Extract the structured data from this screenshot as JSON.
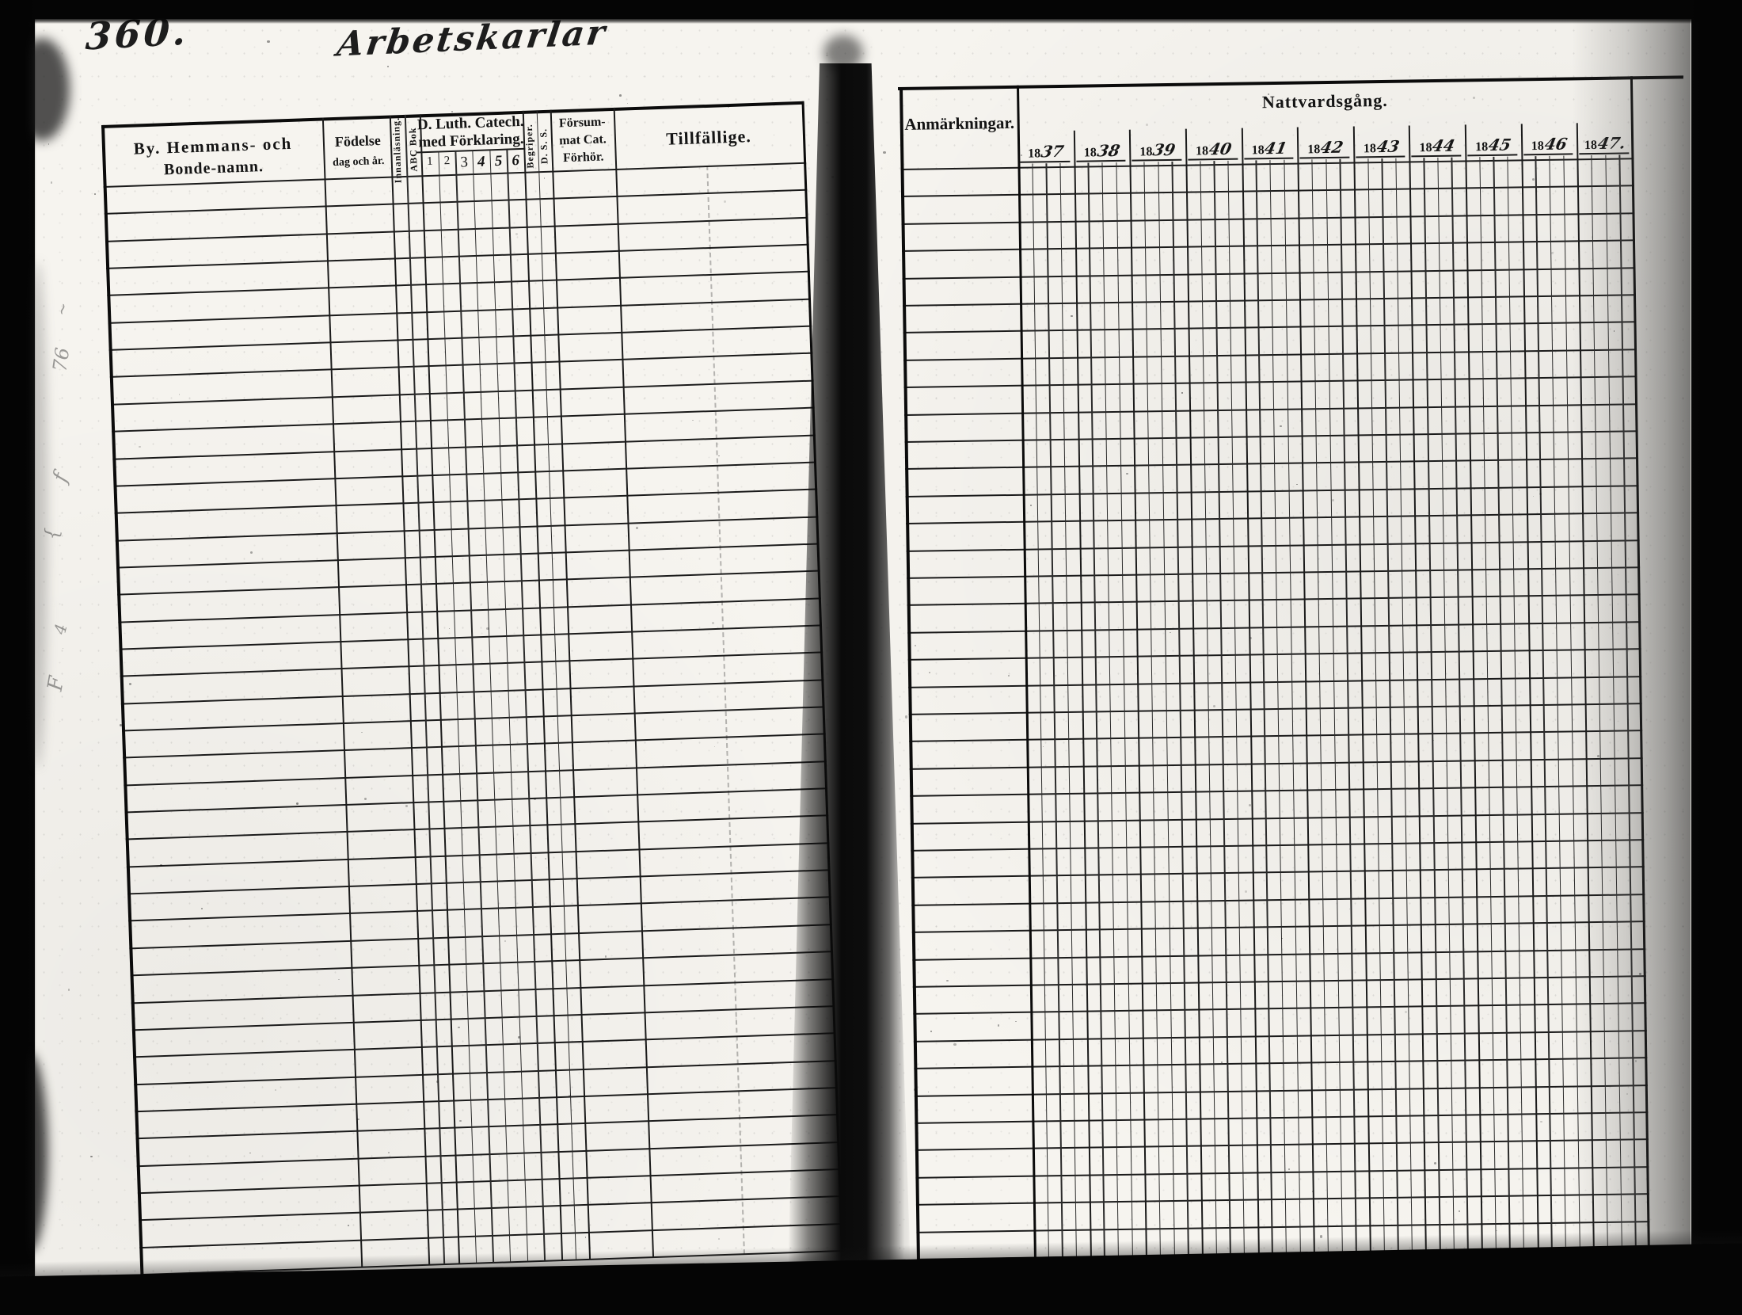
{
  "scan": {
    "page_number": "360.",
    "section_title": "Arbetskarlar",
    "edge_scribbles": [
      "~",
      "76",
      "f",
      "{",
      "4",
      "F"
    ]
  },
  "left_table": {
    "name_header": [
      "By.  Hemmans-  och",
      "Bonde-namn."
    ],
    "birth_header": [
      "Födelse",
      "dag och år."
    ],
    "rotated_reading": [
      "Innanläsning.",
      "ABC Bok"
    ],
    "catechism_header": [
      "D. Luth. Catech.",
      "med Förklaring."
    ],
    "catechism_grades": [
      "1",
      "2",
      "3",
      "4",
      "5",
      "6"
    ],
    "rotated_begriper": "Begriper.",
    "rotated_dss": "D. S. S.",
    "forsummat_header": [
      "Försum-",
      "mat Cat.",
      "Förhör."
    ],
    "tillfallige_header": "Tillfällige.",
    "row_count": 40
  },
  "right_table": {
    "anmarkningar_header": "Anmärkningar.",
    "nattvardsgang_header": "Nattvardsgång.",
    "years": [
      {
        "printed": "18",
        "handwritten": "37"
      },
      {
        "printed": "18",
        "handwritten": "38"
      },
      {
        "printed": "18",
        "handwritten": "39"
      },
      {
        "printed": "18",
        "handwritten": "40"
      },
      {
        "printed": "18",
        "handwritten": "41"
      },
      {
        "printed": "18",
        "handwritten": "42"
      },
      {
        "printed": "18",
        "handwritten": "43"
      },
      {
        "printed": "18",
        "handwritten": "44"
      },
      {
        "printed": "18",
        "handwritten": "45"
      },
      {
        "printed": "18",
        "handwritten": "46"
      },
      {
        "printed": "18",
        "handwritten": "47."
      }
    ],
    "subcolumns_per_year": 4,
    "row_count": 40
  }
}
